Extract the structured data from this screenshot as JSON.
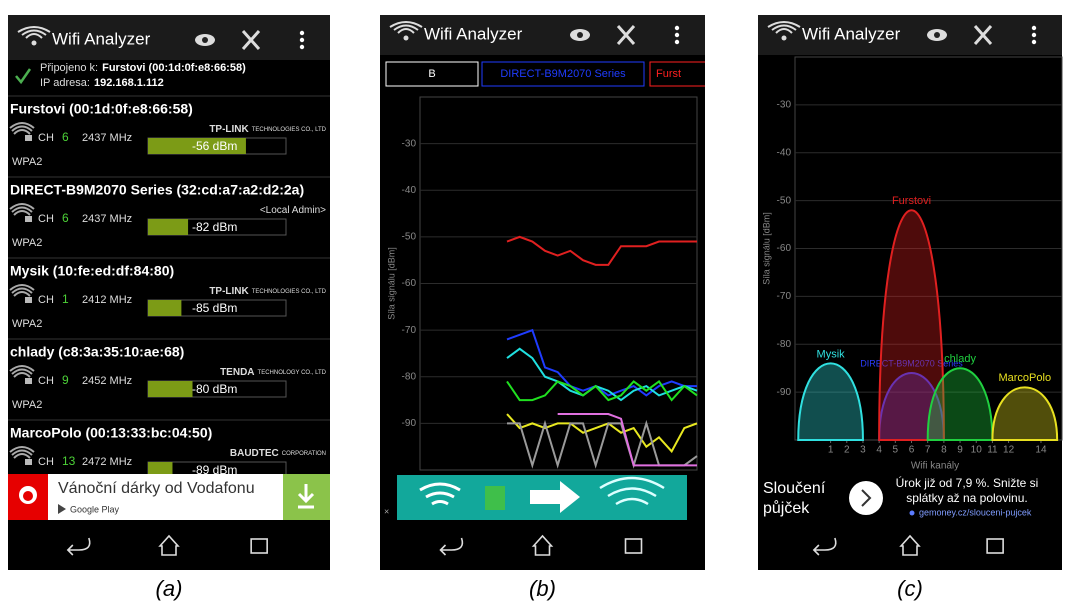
{
  "panels": [
    {
      "caption": "(a)",
      "title": "Wifi Analyzer",
      "connected_label": "Připojeno k:",
      "connected_ssid": "Furstovi (00:1d:0f:e8:66:58)",
      "ip_label": "IP adresa:",
      "ip": "192.168.1.112",
      "signal_lim": [
        -100,
        -38
      ],
      "networks": [
        {
          "name": "Furstovi (00:1d:0f:e8:66:58)",
          "channel_label": "CH",
          "channel": 6,
          "frequency": "2437 MHz",
          "vendor": "TP-LINK",
          "vendor_suffix": "TECHNOLOGIES CO., LTD",
          "signal": -56,
          "signal_label": "-56 dBm",
          "security": "WPA2"
        },
        {
          "name": "DIRECT-B9M2070 Series (32:cd:a7:a2:d2:2a)",
          "channel_label": "CH",
          "channel": 6,
          "frequency": "2437 MHz",
          "vendor": "<Local Admin>",
          "signal": -82,
          "signal_label": "-82 dBm",
          "security": "WPA2"
        },
        {
          "name": "Mysik (10:fe:ed:df:84:80)",
          "channel_label": "CH",
          "channel": 1,
          "frequency": "2412 MHz",
          "vendor": "TP-LINK",
          "vendor_suffix": "TECHNOLOGIES CO., LTD",
          "signal": -85,
          "signal_label": "-85 dBm",
          "security": "WPA2"
        },
        {
          "name": "chlady (c8:3a:35:10:ae:68)",
          "channel_label": "CH",
          "channel": 9,
          "frequency": "2452 MHz",
          "vendor": "TENDA",
          "vendor_suffix": "TECHNOLOGY CO., LTD",
          "signal": -80,
          "signal_label": "-80 dBm",
          "security": "WPA2"
        },
        {
          "name": "MarcoPolo (00:13:33:bc:04:50)",
          "channel_label": "CH",
          "channel": 13,
          "frequency": "2472 MHz",
          "vendor": "BAUDTEC",
          "vendor_suffix": "CORPORATION",
          "signal": -89,
          "signal_label": "-89 dBm"
        }
      ],
      "ad": {
        "text": "Vánoční dárky od Vodafonu",
        "store": "Google Play"
      }
    },
    {
      "caption": "(b)",
      "title": "Wifi Analyzer",
      "chart_data": {
        "type": "line",
        "ylabel": "Síla signálu [dBm]",
        "ylim": [
          -100,
          -20
        ],
        "yticks": [
          -30,
          -40,
          -50,
          -60,
          -70,
          -80,
          -90
        ],
        "grid": true,
        "legend": [
          {
            "name": "B",
            "color": "#ffffff"
          },
          {
            "name": "DIRECT-B9M2070 Series",
            "color": "#1f3cff"
          },
          {
            "name": "Furst",
            "color": "#ff2020"
          }
        ],
        "series": [
          {
            "color": "#e02020",
            "values": [
              -51,
              -50,
              -51,
              -53,
              -54,
              -53,
              -55,
              -56,
              -56,
              -52,
              -52,
              -52,
              -51,
              -51,
              -51,
              -51
            ]
          },
          {
            "color": "#1f3cff",
            "values": [
              -72,
              -71,
              -70,
              -78,
              -79,
              -82,
              -83,
              -82,
              -84,
              -83,
              -82,
              -84,
              -82,
              -81,
              -82,
              -82
            ]
          },
          {
            "color": "#20e0e0",
            "values": [
              -76,
              -74,
              -76,
              -80,
              -81,
              -83,
              -84,
              -82,
              -83,
              -85,
              -83,
              -82,
              -84,
              -83,
              -82,
              -83
            ]
          },
          {
            "color": "#20e020",
            "values": [
              -81,
              -85,
              -85,
              -84,
              -81,
              -82,
              -84,
              -82,
              -85,
              -84,
              -81,
              -83,
              -81,
              -85,
              -82,
              -84
            ]
          },
          {
            "color": "#e8e820",
            "values": [
              -88,
              -91,
              -90,
              -91,
              -90,
              -90,
              -92,
              -91,
              -90,
              -92,
              -91,
              -95,
              -93,
              -96,
              -91,
              -90
            ]
          },
          {
            "color": "#9a9a9a",
            "values": [
              -90,
              -90,
              -99,
              -90,
              -99,
              -90,
              -90,
              -99,
              -90,
              -90,
              -99,
              -90,
              -99,
              -99,
              -99,
              -97
            ]
          },
          {
            "color": "#e070e0",
            "values": [
              null,
              null,
              null,
              null,
              -88,
              -88,
              -88,
              -88,
              -88,
              -89,
              -99,
              -99,
              -99,
              -99,
              -99,
              -99
            ]
          }
        ]
      }
    },
    {
      "caption": "(c)",
      "title": "Wifi Analyzer",
      "chart_data": {
        "type": "area",
        "xlabel": "Wifi kanály",
        "ylabel": "Síla signálu [dBm]",
        "xlim": [
          -1.2,
          15.3
        ],
        "xticks": [
          1,
          2,
          3,
          4,
          5,
          6,
          7,
          8,
          9,
          10,
          11,
          12,
          14
        ],
        "ylim": [
          -100,
          -20
        ],
        "yticks": [
          -30,
          -40,
          -50,
          -60,
          -70,
          -80,
          -90
        ],
        "grid": true,
        "series": [
          {
            "name": "Mysik",
            "color": "#30e0e0",
            "channel": 1,
            "value": -84
          },
          {
            "name": "DIRECT-B9M2070 Series",
            "color": "#2a3cff",
            "channel": 6,
            "value": -86
          },
          {
            "name": "Furstovi",
            "color": "#e02020",
            "channel": 6,
            "value": -52
          },
          {
            "name": "chlady",
            "color": "#20d040",
            "channel": 9,
            "value": -85
          },
          {
            "name": "MarcoPolo",
            "color": "#e8e020",
            "channel": 13,
            "value": -89
          }
        ]
      },
      "ad": {
        "title_lines": [
          "Sloučení",
          "půjček"
        ],
        "text_lines": [
          "Úrok již od 7,9 %. Snižte si",
          "splátky až na polovinu."
        ],
        "url": "gemoney.cz/slouceni-pujcek"
      }
    }
  ]
}
